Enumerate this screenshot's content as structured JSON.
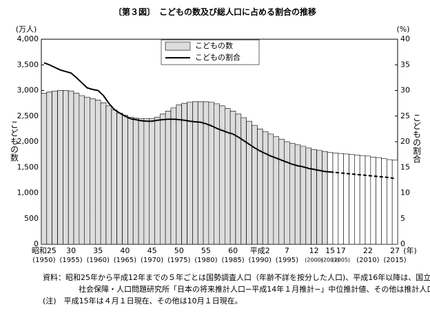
{
  "chart_data": {
    "type": "bar-line",
    "title": "〔第３図〕　こどもの数及び総人口に占める割合の推移",
    "ylabel": "こどもの数",
    "y2label": "こどもの割合",
    "yunit": "(万人)",
    "y2unit": "(%)",
    "xunit": "(年)",
    "categories": [
      "昭和25",
      null,
      null,
      null,
      null,
      "30",
      null,
      null,
      null,
      null,
      "35",
      null,
      null,
      null,
      null,
      "40",
      null,
      null,
      null,
      null,
      "45",
      null,
      null,
      null,
      null,
      "50",
      null,
      null,
      null,
      null,
      "55",
      null,
      null,
      null,
      null,
      "60",
      null,
      null,
      null,
      null,
      "平成2",
      null,
      null,
      null,
      null,
      "7",
      null,
      null,
      null,
      null,
      "12",
      null,
      null,
      "15",
      null,
      "17",
      null,
      null,
      null,
      null,
      "22",
      null,
      null,
      null,
      null,
      "27"
    ],
    "category_years": [
      "(1950)",
      null,
      null,
      null,
      null,
      "(1955)",
      null,
      null,
      null,
      null,
      "(1960)",
      null,
      null,
      null,
      null,
      "(1965)",
      null,
      null,
      null,
      null,
      "(1970)",
      null,
      null,
      null,
      null,
      "(1975)",
      null,
      null,
      null,
      null,
      "(1980)",
      null,
      null,
      null,
      null,
      "(1985)",
      null,
      null,
      null,
      null,
      "(1990)",
      null,
      null,
      null,
      null,
      "(1995)",
      null,
      null,
      null,
      null,
      "(2000)",
      null,
      null,
      "(2003)",
      null,
      "(2005)",
      null,
      null,
      null,
      null,
      "(2010)",
      null,
      null,
      null,
      null,
      "(2015)"
    ],
    "projection_start": 53,
    "series": [
      {
        "name": "こどもの数",
        "color": "#000000",
        "values": [
          2943,
          2970,
          2988,
          3000,
          3001,
          2990,
          2950,
          2900,
          2870,
          2840,
          2810,
          2760,
          2700,
          2620,
          2560,
          2520,
          2480,
          2460,
          2450,
          2450,
          2450,
          2480,
          2540,
          2600,
          2660,
          2720,
          2750,
          2770,
          2780,
          2780,
          2780,
          2770,
          2740,
          2700,
          2650,
          2600,
          2540,
          2470,
          2400,
          2320,
          2250,
          2200,
          2150,
          2100,
          2050,
          2000,
          1970,
          1940,
          1910,
          1880,
          1850,
          1830,
          1810,
          1790,
          1780,
          1770,
          1760,
          1750,
          1740,
          1730,
          1720,
          1700,
          1690,
          1670,
          1650,
          1640
        ]
      },
      {
        "name": "こどもの割合",
        "color": "#000000",
        "axis": "y2",
        "values": [
          35.4,
          35.0,
          34.5,
          34.0,
          33.7,
          33.4,
          32.5,
          31.5,
          30.5,
          30.2,
          30.0,
          29.0,
          27.5,
          26.3,
          25.6,
          25.0,
          24.5,
          24.3,
          24.1,
          24.0,
          24.0,
          24.2,
          24.3,
          24.4,
          24.4,
          24.3,
          24.2,
          24.0,
          23.9,
          23.8,
          23.5,
          23.1,
          22.6,
          22.2,
          21.8,
          21.5,
          20.9,
          20.2,
          19.5,
          18.8,
          18.2,
          17.7,
          17.2,
          16.8,
          16.4,
          16.0,
          15.6,
          15.3,
          15.1,
          14.8,
          14.6,
          14.4,
          14.2,
          14.1,
          14.0,
          13.9,
          13.8,
          13.7,
          13.6,
          13.5,
          13.4,
          13.3,
          13.2,
          13.1,
          13.0,
          12.8
        ]
      }
    ],
    "ylim": [
      0,
      4000
    ],
    "yticks": [
      0,
      500,
      {
        "value": 1000,
        "label": "1,000"
      },
      {
        "value": 1500,
        "label": "1,500"
      },
      {
        "value": 2000,
        "label": "2,000"
      },
      {
        "value": 2500,
        "label": "2,500"
      },
      {
        "value": 3000,
        "label": "3,000"
      },
      {
        "value": 3500,
        "label": "3,500"
      },
      {
        "value": 4000,
        "label": "4,000"
      }
    ],
    "y2lim": [
      0,
      40
    ],
    "y2ticks": [
      0,
      5,
      10,
      15,
      20,
      25,
      30,
      35,
      40
    ],
    "notes": [
      "資料：昭和25年から平成12年までの５年ごとは国勢調査人口（年齢不詳を按分した人口)、平成16年以降は、国立",
      "社会保障・人口問題研究所「日本の将来推計人口−平成14年１月推計−」中位推計値、その他は推計人口。",
      "(注)　平成15年は４月１日現在、その他は10月１日現在。"
    ]
  }
}
